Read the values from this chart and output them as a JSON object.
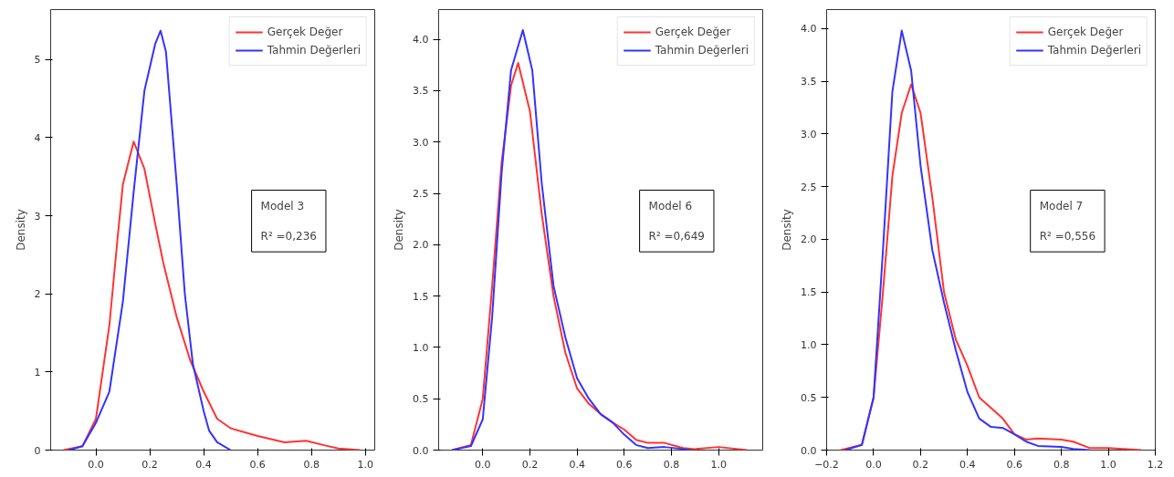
{
  "chart_data": [
    {
      "type": "line",
      "ylabel": "Density",
      "legend": "top right",
      "annotations": [
        "Model 3",
        "R² =0,236"
      ],
      "xlim": [
        -0.168,
        1.035
      ],
      "ylim": [
        0,
        5.64
      ],
      "xticks": [
        {
          "value": 0,
          "label": "0.0"
        },
        {
          "value": 0.2,
          "label": "0.2"
        },
        {
          "value": 0.4,
          "label": "0.4"
        },
        {
          "value": 0.6,
          "label": "0.6"
        },
        {
          "value": 0.8,
          "label": "0.8"
        },
        {
          "value": 1,
          "label": "1.0"
        }
      ],
      "yticks": [
        0,
        1,
        2,
        3,
        4,
        5
      ],
      "series": [
        {
          "name": "Gerçek Değer",
          "color": "#ff3333",
          "x": [
            -0.12,
            -0.05,
            0.0,
            0.05,
            0.08,
            0.1,
            0.14,
            0.18,
            0.22,
            0.25,
            0.3,
            0.35,
            0.4,
            0.45,
            0.5,
            0.6,
            0.7,
            0.78,
            0.85,
            0.9,
            0.98
          ],
          "values": [
            0,
            0.05,
            0.4,
            1.6,
            2.7,
            3.4,
            3.95,
            3.6,
            2.9,
            2.4,
            1.7,
            1.15,
            0.75,
            0.4,
            0.28,
            0.18,
            0.1,
            0.12,
            0.06,
            0.02,
            0
          ]
        },
        {
          "name": "Tahmin Değerleri",
          "color": "#3333ff",
          "x": [
            -0.1,
            -0.05,
            0.0,
            0.05,
            0.1,
            0.14,
            0.18,
            0.22,
            0.24,
            0.26,
            0.3,
            0.33,
            0.36,
            0.4,
            0.42,
            0.45,
            0.5
          ],
          "values": [
            0,
            0.05,
            0.35,
            0.75,
            1.9,
            3.3,
            4.6,
            5.2,
            5.37,
            5.1,
            3.4,
            2.0,
            1.1,
            0.5,
            0.25,
            0.1,
            0
          ]
        }
      ]
    },
    {
      "type": "line",
      "ylabel": "Density",
      "legend": "top right",
      "annotations": [
        "Model 6",
        "R² =0,649"
      ],
      "xlim": [
        -0.187,
        1.187
      ],
      "ylim": [
        0,
        4.29
      ],
      "xticks": [
        {
          "value": 0,
          "label": "0.0"
        },
        {
          "value": 0.2,
          "label": "0.2"
        },
        {
          "value": 0.4,
          "label": "0.4"
        },
        {
          "value": 0.6,
          "label": "0.6"
        },
        {
          "value": 0.8,
          "label": "0.8"
        },
        {
          "value": 1,
          "label": "1.0"
        }
      ],
      "yticks": [
        {
          "value": 0,
          "label": "0.0"
        },
        0.5,
        {
          "value": 1,
          "label": "1.0"
        },
        1.5,
        {
          "value": 2,
          "label": "2.0"
        },
        2.5,
        {
          "value": 3,
          "label": "3.0"
        },
        3.5,
        {
          "value": 4,
          "label": "4.0"
        }
      ],
      "series": [
        {
          "name": "Gerçek Değer",
          "color": "#ff3333",
          "x": [
            -0.13,
            -0.05,
            0.0,
            0.04,
            0.08,
            0.12,
            0.15,
            0.2,
            0.25,
            0.3,
            0.35,
            0.4,
            0.45,
            0.5,
            0.55,
            0.6,
            0.65,
            0.7,
            0.77,
            0.85,
            0.9,
            1.0,
            1.12
          ],
          "values": [
            0,
            0.05,
            0.5,
            1.6,
            2.8,
            3.55,
            3.77,
            3.3,
            2.3,
            1.5,
            0.95,
            0.6,
            0.45,
            0.35,
            0.27,
            0.2,
            0.1,
            0.07,
            0.07,
            0.02,
            0.01,
            0.03,
            0
          ]
        },
        {
          "name": "Tahmin Değerleri",
          "color": "#3333ff",
          "x": [
            -0.13,
            -0.05,
            0.0,
            0.04,
            0.08,
            0.12,
            0.17,
            0.21,
            0.25,
            0.3,
            0.35,
            0.4,
            0.45,
            0.5,
            0.55,
            0.6,
            0.65,
            0.7,
            0.77,
            0.85,
            0.88
          ],
          "values": [
            0,
            0.04,
            0.3,
            1.3,
            2.7,
            3.7,
            4.09,
            3.7,
            2.6,
            1.6,
            1.1,
            0.7,
            0.5,
            0.35,
            0.27,
            0.15,
            0.05,
            0.02,
            0.03,
            0.01,
            0
          ]
        }
      ]
    },
    {
      "type": "line",
      "ylabel": "Density",
      "legend": "top right",
      "annotations": [
        "Model 7",
        "R² =0,556"
      ],
      "xlim": [
        -0.2,
        1.2
      ],
      "ylim": [
        0,
        4.18
      ],
      "xticks": [
        {
          "value": -0.2,
          "label": "−0.2"
        },
        {
          "value": 0,
          "label": "0.0"
        },
        {
          "value": 0.2,
          "label": "0.2"
        },
        {
          "value": 0.4,
          "label": "0.4"
        },
        {
          "value": 0.6,
          "label": "0.6"
        },
        {
          "value": 0.8,
          "label": "0.8"
        },
        {
          "value": 1,
          "label": "1.0"
        },
        {
          "value": 1.2,
          "label": "1.2"
        }
      ],
      "yticks": [
        {
          "value": 0,
          "label": "0.0"
        },
        0.5,
        {
          "value": 1,
          "label": "1.0"
        },
        1.5,
        {
          "value": 2,
          "label": "2.0"
        },
        2.5,
        {
          "value": 3,
          "label": "3.0"
        },
        3.5,
        {
          "value": 4,
          "label": "4.0"
        }
      ],
      "series": [
        {
          "name": "Gerçek Değer",
          "color": "#ff3333",
          "x": [
            -0.14,
            -0.05,
            0.0,
            0.04,
            0.08,
            0.12,
            0.16,
            0.2,
            0.25,
            0.3,
            0.35,
            0.4,
            0.45,
            0.5,
            0.55,
            0.6,
            0.65,
            0.7,
            0.8,
            0.85,
            0.92,
            1.0,
            1.14
          ],
          "values": [
            0,
            0.05,
            0.5,
            1.5,
            2.6,
            3.2,
            3.47,
            3.2,
            2.4,
            1.5,
            1.05,
            0.8,
            0.5,
            0.4,
            0.3,
            0.15,
            0.1,
            0.11,
            0.1,
            0.08,
            0.02,
            0.02,
            0
          ]
        },
        {
          "name": "Tahmin Değerleri",
          "color": "#3333ff",
          "x": [
            -0.12,
            -0.05,
            0.0,
            0.04,
            0.08,
            0.12,
            0.16,
            0.2,
            0.25,
            0.3,
            0.35,
            0.4,
            0.45,
            0.5,
            0.55,
            0.6,
            0.65,
            0.7,
            0.8,
            0.85,
            0.92
          ],
          "values": [
            0,
            0.05,
            0.5,
            1.9,
            3.4,
            3.98,
            3.6,
            2.7,
            1.9,
            1.4,
            0.95,
            0.55,
            0.3,
            0.22,
            0.21,
            0.15,
            0.08,
            0.04,
            0.03,
            0.01,
            0
          ]
        }
      ]
    }
  ]
}
